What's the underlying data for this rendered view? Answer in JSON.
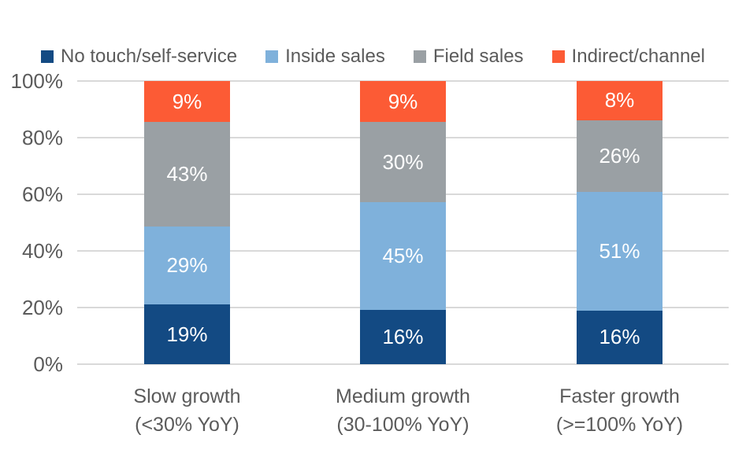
{
  "chart_data": {
    "type": "bar",
    "stacked": true,
    "categories": [
      [
        "Slow growth",
        "(<30% YoY)"
      ],
      [
        "Medium growth",
        "(30-100% YoY)"
      ],
      [
        "Faster growth",
        "(>=100% YoY)"
      ]
    ],
    "series": [
      {
        "name": "No touch/self-service",
        "color": "#134A83",
        "values": [
          19,
          16,
          16
        ]
      },
      {
        "name": "Inside sales",
        "color": "#7FB1DB",
        "values": [
          29,
          45,
          51
        ]
      },
      {
        "name": "Field sales",
        "color": "#9AA0A4",
        "values": [
          43,
          30,
          26
        ]
      },
      {
        "name": "Indirect/channel",
        "color": "#FC5B35",
        "values": [
          9,
          9,
          8
        ]
      }
    ],
    "value_suffix": "%",
    "ylim": [
      0,
      100
    ],
    "yticks": [
      0,
      20,
      40,
      60,
      80,
      100
    ],
    "ytick_labels": [
      "0%",
      "20%",
      "40%",
      "60%",
      "80%",
      "100%"
    ],
    "grid": true,
    "legend_position": "top",
    "gridline_color": "#D9D9D9",
    "axis_text_color": "#5B5B5B",
    "data_label_color": "#FFFFFF"
  }
}
